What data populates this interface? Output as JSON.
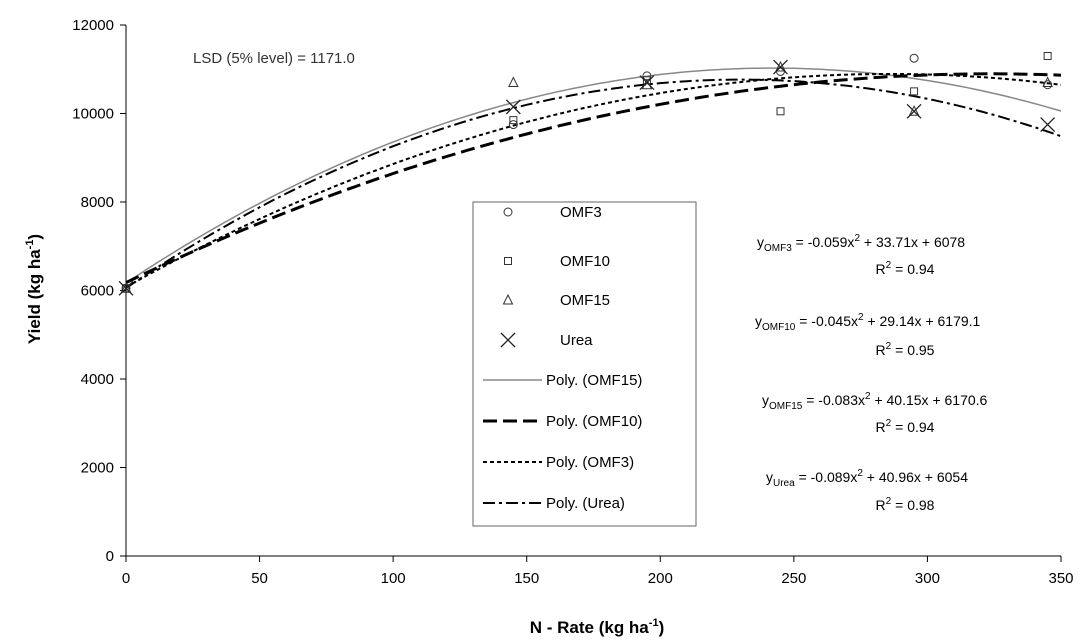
{
  "chart_data": {
    "type": "scatter",
    "xlabel": "N - Rate (kg ha",
    "xlabel_sup": "-1",
    "xlabel_end": ")",
    "ylabel": "Yield (kg ha",
    "ylabel_sup": "-1",
    "ylabel_end": ")",
    "xlim": [
      0,
      350
    ],
    "ylim": [
      0,
      12000
    ],
    "x_ticks": [
      0,
      50,
      100,
      150,
      200,
      250,
      300,
      350
    ],
    "y_ticks": [
      0,
      2000,
      4000,
      6000,
      8000,
      10000,
      12000
    ],
    "grid": false,
    "annotation": "LSD (5% level) = 1171.0",
    "series": [
      {
        "name": "OMF3",
        "marker": "circle",
        "x": [
          0,
          145,
          195,
          245,
          295,
          345
        ],
        "y": [
          6050,
          9750,
          10850,
          10950,
          11250,
          10650
        ]
      },
      {
        "name": "OMF10",
        "marker": "square",
        "x": [
          0,
          145,
          195,
          245,
          295,
          345
        ],
        "y": [
          6050,
          9850,
          10750,
          10050,
          10500,
          11300
        ]
      },
      {
        "name": "OMF15",
        "marker": "triangle",
        "x": [
          0,
          145,
          195,
          245,
          295,
          345
        ],
        "y": [
          6050,
          10700,
          10650,
          11050,
          10050,
          10700
        ]
      },
      {
        "name": "Urea",
        "marker": "x",
        "x": [
          0,
          145,
          195,
          245,
          295,
          345
        ],
        "y": [
          6050,
          10150,
          10700,
          11050,
          10050,
          9750
        ]
      }
    ],
    "trendlines": [
      {
        "name": "Poly. (OMF15)",
        "dash": "solid",
        "coef": [
          -0.083,
          40.15,
          6170.6
        ]
      },
      {
        "name": "Poly. (OMF10)",
        "dash": "long-dash",
        "coef": [
          -0.045,
          29.14,
          6179.1
        ]
      },
      {
        "name": "Poly. (OMF3)",
        "dash": "short-dash",
        "coef": [
          -0.059,
          33.71,
          6078
        ]
      },
      {
        "name": "Poly. (Urea)",
        "dash": "dash-dot",
        "coef": [
          -0.089,
          40.96,
          6054
        ]
      }
    ],
    "legend_position": "center",
    "equations": [
      {
        "y_prefix": "y",
        "sub": "OMF3",
        "rhs_a": " = -0.059x",
        "rhs_b": " + 33.71x + 6078",
        "r2_prefix": "R",
        "r2_value": " = 0.94"
      },
      {
        "y_prefix": "y",
        "sub": "OMF10",
        "rhs_a": " = -0.045x",
        "rhs_b": " + 29.14x + 6179.1",
        "r2_prefix": "R",
        "r2_value": " = 0.95"
      },
      {
        "y_prefix": "y",
        "sub": "OMF15",
        "rhs_a": " = -0.083x",
        "rhs_b": " + 40.15x + 6170.6",
        "r2_prefix": "R",
        "r2_value": " = 0.94"
      },
      {
        "y_prefix": "y",
        "sub": "Urea",
        "rhs_a": " = -0.089x",
        "rhs_b": " + 40.96x + 6054",
        "r2_prefix": "R",
        "r2_value": " = 0.98"
      }
    ],
    "superscript_2": "2"
  }
}
